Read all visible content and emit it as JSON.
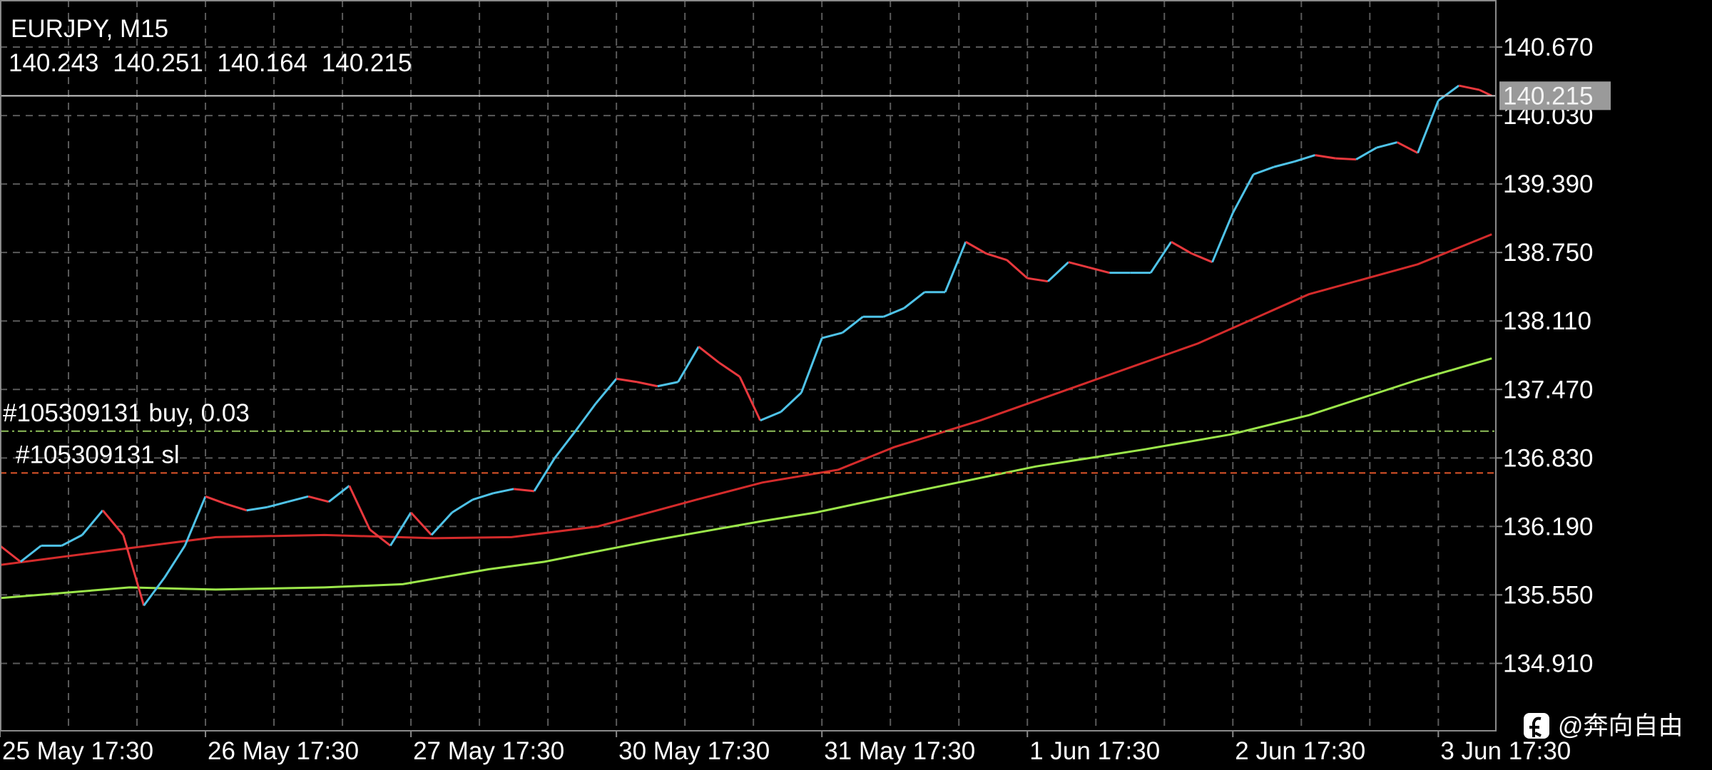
{
  "chart_data": {
    "type": "line",
    "title": "EURJPY, M15",
    "ohlc": [
      140.243,
      140.251,
      140.164,
      140.215
    ],
    "xlim": [
      0,
      7.28
    ],
    "ylim": [
      134.28,
      141.11
    ],
    "xticks": [
      {
        "value": 0,
        "label": "25 May 17:30"
      },
      {
        "value": 1,
        "label": "26 May 17:30"
      },
      {
        "value": 2,
        "label": "27 May 17:30"
      },
      {
        "value": 3,
        "label": "30 May 17:30"
      },
      {
        "value": 4,
        "label": "31 May 17:30"
      },
      {
        "value": 5,
        "label": "1 Jun 17:30"
      },
      {
        "value": 6,
        "label": "2 Jun 17:30"
      },
      {
        "value": 7,
        "label": "3 Jun 17:30"
      }
    ],
    "yticks": [
      {
        "value": 134.91,
        "label": "134.910"
      },
      {
        "value": 135.55,
        "label": "135.550"
      },
      {
        "value": 136.19,
        "label": "136.190"
      },
      {
        "value": 136.83,
        "label": "136.830"
      },
      {
        "value": 137.47,
        "label": "137.470"
      },
      {
        "value": 138.11,
        "label": "138.110"
      },
      {
        "value": 138.75,
        "label": "138.750"
      },
      {
        "value": 139.39,
        "label": "139.390"
      },
      {
        "value": 140.03,
        "label": "140.030"
      },
      {
        "value": 140.67,
        "label": "140.670"
      }
    ],
    "grid": true,
    "up_color": "#4fc3e8",
    "down_color": "#e8383d",
    "price": {
      "x": [
        0,
        0.1,
        0.2,
        0.3,
        0.4,
        0.5,
        0.6,
        0.7,
        0.8,
        0.9,
        1.0,
        1.1,
        1.2,
        1.3,
        1.4,
        1.5,
        1.6,
        1.7,
        1.8,
        1.9,
        2.0,
        2.1,
        2.2,
        2.3,
        2.4,
        2.5,
        2.6,
        2.7,
        2.8,
        2.9,
        3.0,
        3.1,
        3.2,
        3.3,
        3.4,
        3.5,
        3.6,
        3.7,
        3.8,
        3.9,
        4.0,
        4.1,
        4.2,
        4.3,
        4.4,
        4.5,
        4.6,
        4.7,
        4.8,
        4.9,
        5.0,
        5.1,
        5.2,
        5.3,
        5.4,
        5.5,
        5.6,
        5.7,
        5.8,
        5.9,
        6.0,
        6.1,
        6.2,
        6.3,
        6.4,
        6.5,
        6.6,
        6.7,
        6.8,
        6.9,
        7.0,
        7.1,
        7.2,
        7.26
      ],
      "values": [
        136.01,
        135.86,
        136.01,
        136.01,
        136.11,
        136.34,
        136.11,
        135.45,
        135.71,
        136.01,
        136.47,
        136.4,
        136.34,
        136.37,
        136.42,
        136.47,
        136.42,
        136.57,
        136.16,
        136.01,
        136.32,
        136.11,
        136.32,
        136.44,
        136.5,
        136.54,
        136.52,
        136.83,
        137.08,
        137.34,
        137.57,
        137.54,
        137.5,
        137.54,
        137.87,
        137.72,
        137.59,
        137.18,
        137.26,
        137.44,
        137.95,
        138.0,
        138.15,
        138.15,
        138.23,
        138.38,
        138.38,
        138.85,
        138.74,
        138.68,
        138.51,
        138.48,
        138.66,
        138.61,
        138.56,
        138.56,
        138.56,
        138.85,
        138.74,
        138.66,
        139.12,
        139.48,
        139.55,
        139.6,
        139.66,
        139.63,
        139.62,
        139.73,
        139.78,
        139.68,
        140.17,
        140.31,
        140.27,
        140.215
      ]
    },
    "series": [
      {
        "color": "#d42b2b",
        "x": [
          0,
          0.52,
          1.05,
          1.58,
          2.11,
          2.49,
          2.91,
          3.39,
          3.71,
          4.08,
          4.35,
          4.77,
          5.3,
          5.83,
          6.37,
          6.9,
          7.26
        ],
        "values": [
          135.83,
          135.96,
          136.09,
          136.11,
          136.08,
          136.09,
          136.19,
          136.44,
          136.6,
          136.72,
          136.93,
          137.18,
          137.54,
          137.9,
          138.36,
          138.64,
          138.92
        ]
      },
      {
        "color": "#9be64a",
        "x": [
          0,
          0.63,
          1.05,
          1.58,
          1.96,
          2.38,
          2.65,
          3.18,
          3.71,
          3.97,
          4.51,
          5.04,
          5.57,
          5.99,
          6.37,
          6.9,
          7.26
        ],
        "values": [
          135.52,
          135.62,
          135.6,
          135.62,
          135.65,
          135.79,
          135.86,
          136.06,
          136.24,
          136.32,
          136.54,
          136.75,
          136.91,
          137.05,
          137.23,
          137.56,
          137.76
        ]
      }
    ],
    "orders": [
      {
        "label": "#105309131 buy, 0.03",
        "value": 137.08,
        "color": "#8fbf5a"
      },
      {
        "label": "#105309131 sl",
        "value": 136.69,
        "color": "#e0552a"
      }
    ],
    "price_line_color": "#c8c8c8",
    "watermark": "@奔向自由"
  }
}
